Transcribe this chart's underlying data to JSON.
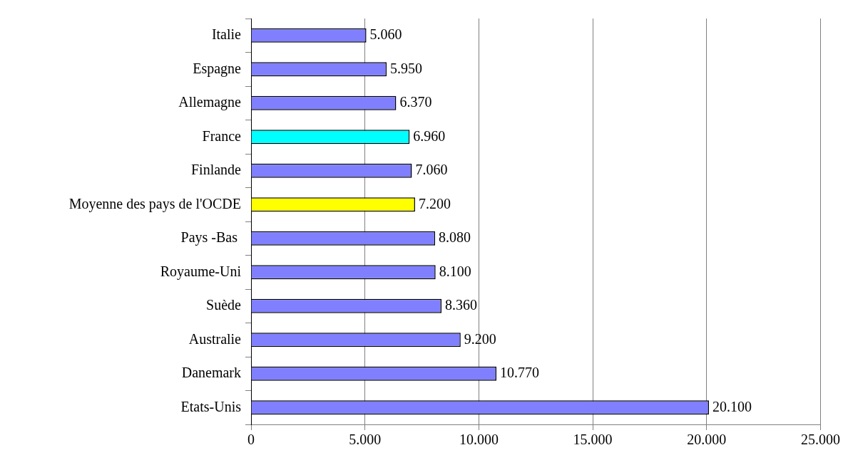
{
  "chart_data": {
    "type": "bar",
    "orientation": "horizontal",
    "categories": [
      "Italie",
      "Espagne",
      "Allemagne",
      "France",
      "Finlande",
      "Moyenne des pays de l'OCDE",
      "Pays -Bas ",
      "Royaume-Uni",
      "Suède",
      "Australie",
      "Danemark",
      "Etats-Unis"
    ],
    "values": [
      5060,
      5950,
      6370,
      6960,
      7060,
      7200,
      8080,
      8100,
      8360,
      9200,
      10770,
      20100
    ],
    "colors": [
      "#8080ff",
      "#8080ff",
      "#8080ff",
      "#00ffff",
      "#8080ff",
      "#ffff00",
      "#8080ff",
      "#8080ff",
      "#8080ff",
      "#8080ff",
      "#8080ff",
      "#8080ff"
    ],
    "value_labels": [
      "5.060",
      "5.950",
      "6.370",
      "6.960",
      "7.060",
      "7.200",
      "8.080",
      "8.100",
      "8.360",
      "9.200",
      "10.770",
      "20.100"
    ],
    "xlim": [
      0,
      25000
    ],
    "xticks": [
      {
        "value": 0,
        "label": "0"
      },
      {
        "value": 5000,
        "label": "5.000"
      },
      {
        "value": 10000,
        "label": "10.000"
      },
      {
        "value": 15000,
        "label": "15.000"
      },
      {
        "value": 20000,
        "label": "20.000"
      },
      {
        "value": 25000,
        "label": "25.000"
      }
    ],
    "grid": "x",
    "legend": false
  }
}
